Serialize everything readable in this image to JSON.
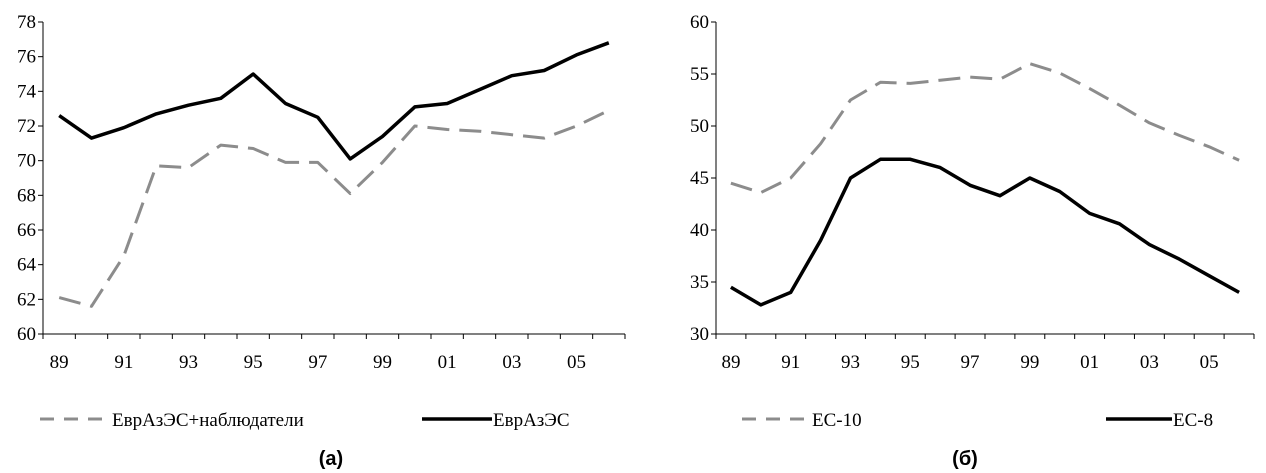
{
  "chart_data": [
    {
      "type": "line",
      "caption": "(а)",
      "categories": [
        "89",
        "90",
        "91",
        "92",
        "93",
        "94",
        "95",
        "96",
        "97",
        "98",
        "99",
        "00",
        "01",
        "02",
        "03",
        "04",
        "05",
        "06"
      ],
      "x_tick_labels": [
        "89",
        "91",
        "93",
        "95",
        "97",
        "99",
        "01",
        "03",
        "05"
      ],
      "ylim": [
        60,
        78
      ],
      "y_ticks": [
        60,
        62,
        64,
        66,
        68,
        70,
        72,
        74,
        76,
        78
      ],
      "legend_position": "bottom",
      "series": [
        {
          "name": "ЕврАзЭС+наблюдатели",
          "style": "dashed",
          "color": "#8c8c8c",
          "values": [
            62.1,
            61.6,
            64.5,
            69.7,
            69.6,
            70.9,
            70.7,
            69.9,
            69.9,
            68.1,
            69.9,
            72.0,
            71.8,
            71.7,
            71.5,
            71.3,
            72.0,
            72.9
          ]
        },
        {
          "name": "ЕврАзЭС",
          "style": "solid",
          "color": "#000000",
          "values": [
            72.6,
            71.3,
            71.9,
            72.7,
            73.2,
            73.6,
            75.0,
            73.3,
            72.5,
            70.1,
            71.4,
            73.1,
            73.3,
            74.1,
            74.9,
            75.2,
            76.1,
            76.8
          ]
        }
      ]
    },
    {
      "type": "line",
      "caption": "(б)",
      "categories": [
        "89",
        "90",
        "91",
        "92",
        "93",
        "94",
        "95",
        "96",
        "97",
        "98",
        "99",
        "00",
        "01",
        "02",
        "03",
        "04",
        "05",
        "06"
      ],
      "x_tick_labels": [
        "89",
        "91",
        "93",
        "95",
        "97",
        "99",
        "01",
        "03",
        "05"
      ],
      "ylim": [
        30,
        60
      ],
      "y_ticks": [
        30,
        35,
        40,
        45,
        50,
        55,
        60
      ],
      "legend_position": "bottom",
      "series": [
        {
          "name": "ЕС-10",
          "style": "dashed",
          "color": "#8c8c8c",
          "values": [
            44.5,
            43.6,
            45.0,
            48.3,
            52.5,
            54.2,
            54.1,
            54.4,
            54.7,
            54.5,
            56.0,
            55.1,
            53.6,
            52.0,
            50.3,
            49.1,
            48.0,
            46.7
          ]
        },
        {
          "name": "ЕС-8",
          "style": "solid",
          "color": "#000000",
          "values": [
            34.5,
            32.8,
            34.0,
            39.0,
            45.0,
            46.8,
            46.8,
            46.0,
            44.3,
            43.3,
            45.0,
            43.7,
            41.6,
            40.6,
            38.6,
            37.2,
            35.6,
            34.0
          ]
        }
      ]
    }
  ]
}
